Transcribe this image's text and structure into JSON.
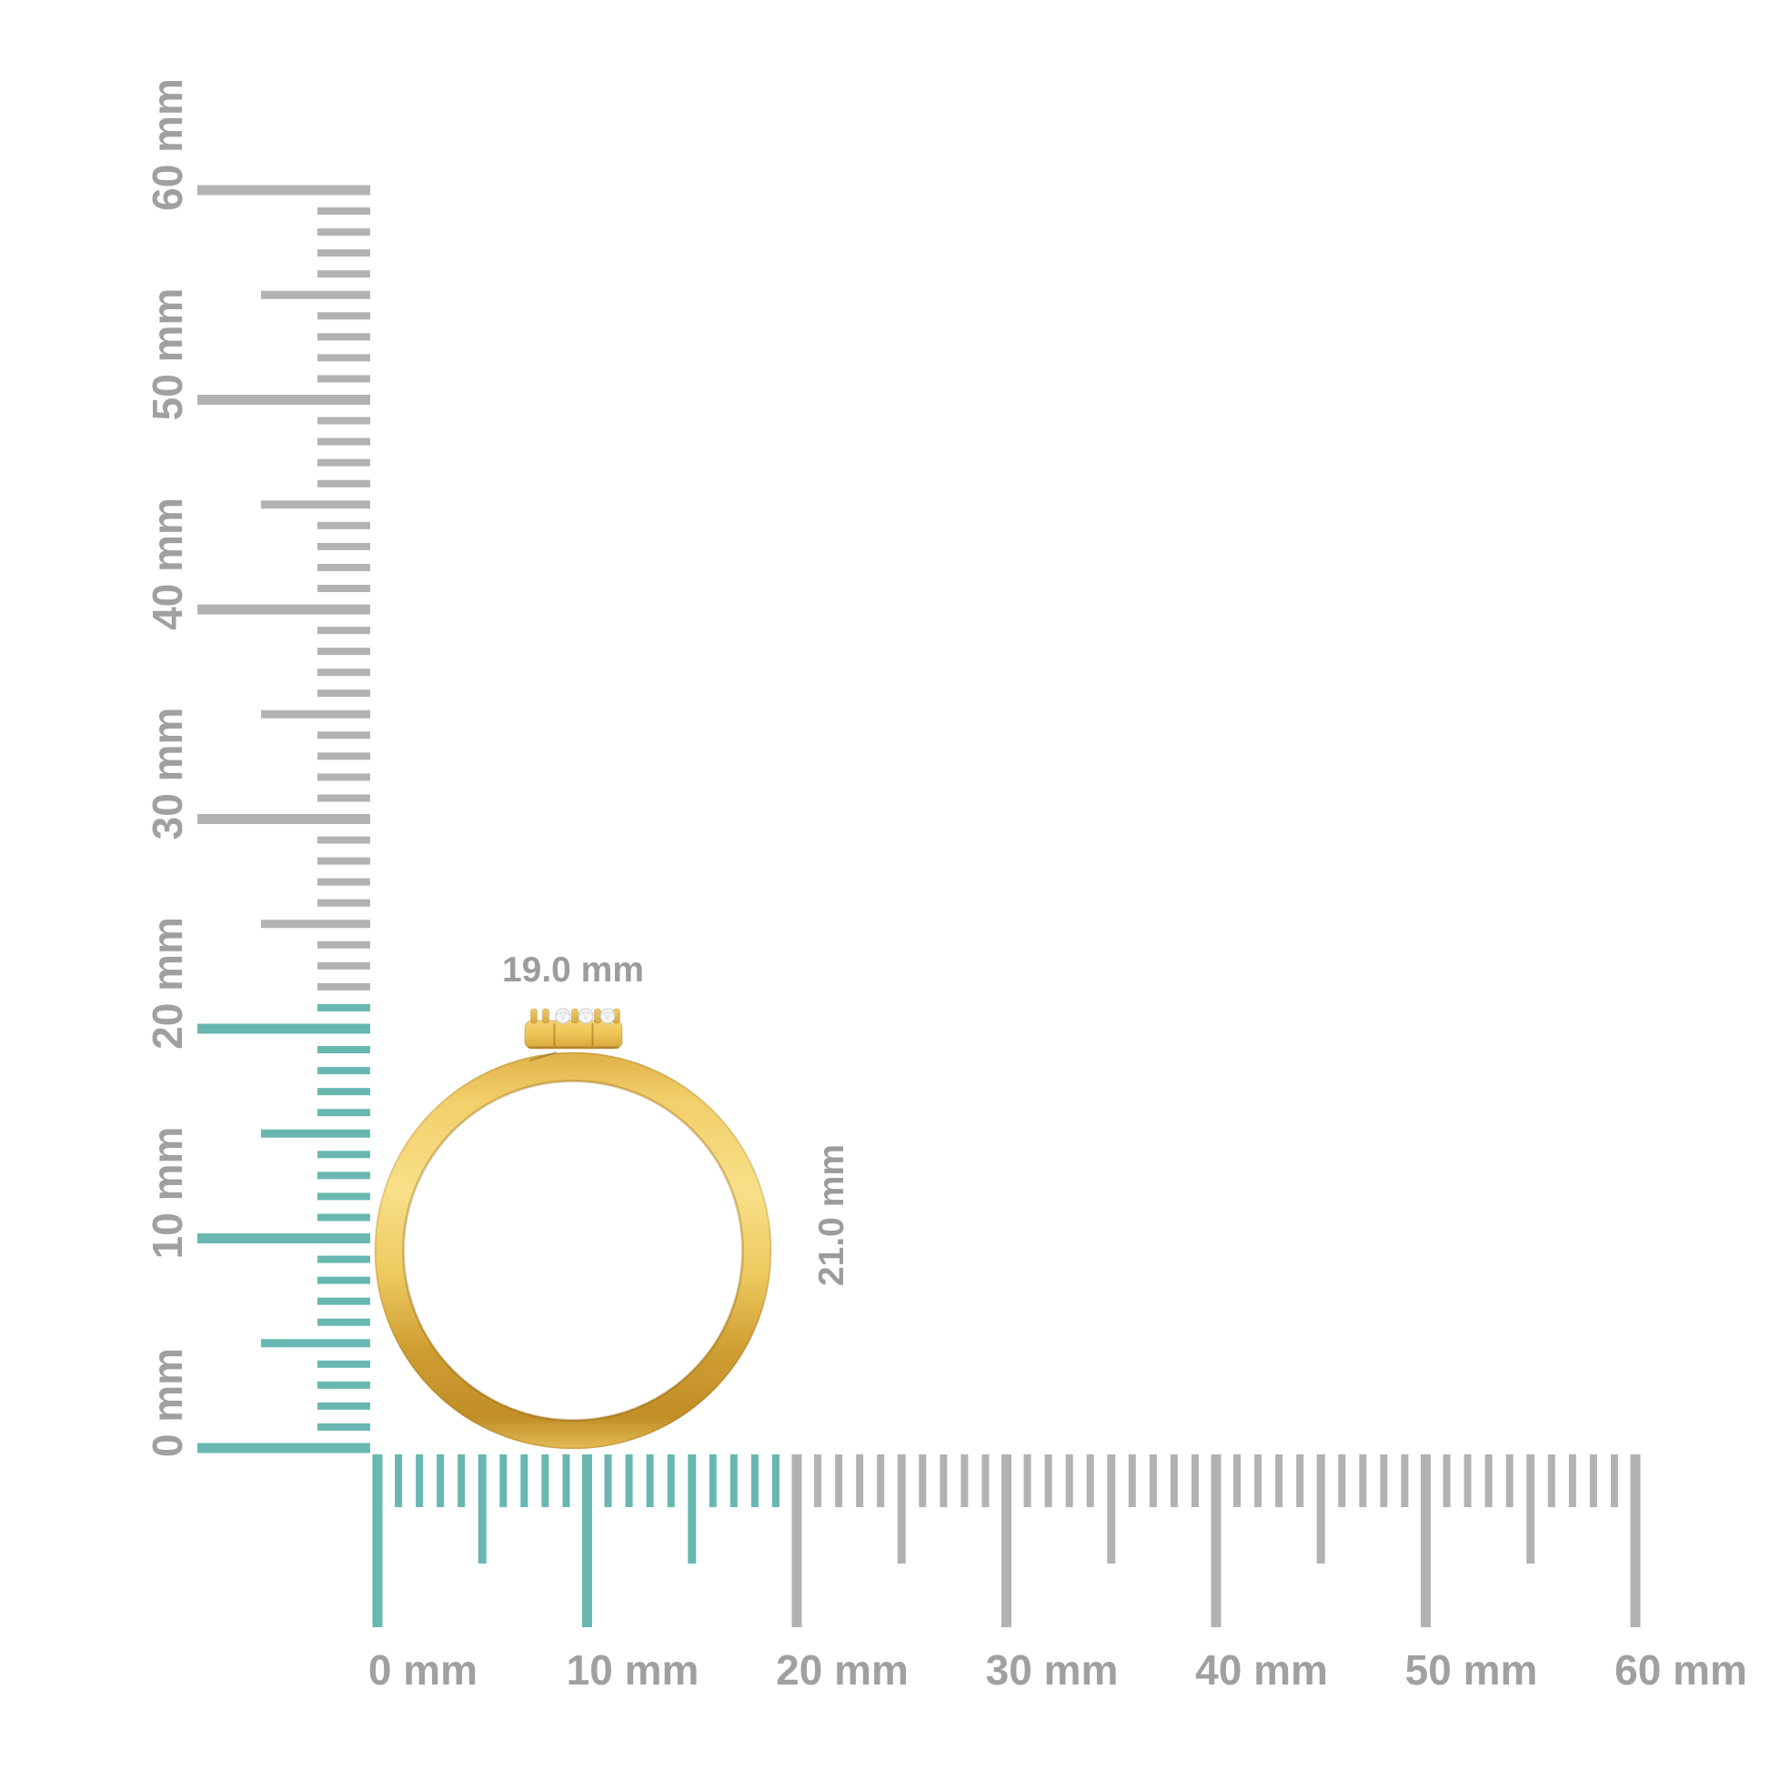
{
  "colors": {
    "background": "#ffffff",
    "highlight_teal": "#68b8b1",
    "tick_gray": "#b2b2b2",
    "label_gray": "#a0a0a0",
    "dimension_gray": "#9c9c9c",
    "gold_light": "#f8df88",
    "gold_mid": "#eec45a",
    "gold_dark": "#c6922b",
    "diamond_fill": "#f7f7f7",
    "diamond_edge": "#c8c8c8"
  },
  "vertical_ruler": {
    "unit": "mm",
    "min_mm": 0,
    "max_mm": 60,
    "major_step_mm": 10,
    "mid_step_mm": 5,
    "minor_step_mm": 1,
    "highlighted_span_mm": 21,
    "labels": [
      "0 mm",
      "10 mm",
      "20 mm",
      "30 mm",
      "40 mm",
      "50 mm",
      "60 mm"
    ]
  },
  "horizontal_ruler": {
    "unit": "mm",
    "min_mm": 0,
    "max_mm": 60,
    "major_step_mm": 10,
    "mid_step_mm": 5,
    "minor_step_mm": 1,
    "highlighted_span_mm": 19,
    "labels": [
      "0 mm",
      "10 mm",
      "20 mm",
      "30 mm",
      "40 mm",
      "50 mm",
      "60 mm"
    ]
  },
  "ring": {
    "width_label": "19.0 mm",
    "height_label": "21.0 mm",
    "visible_diamonds": 3,
    "visible_prongs": 5
  }
}
